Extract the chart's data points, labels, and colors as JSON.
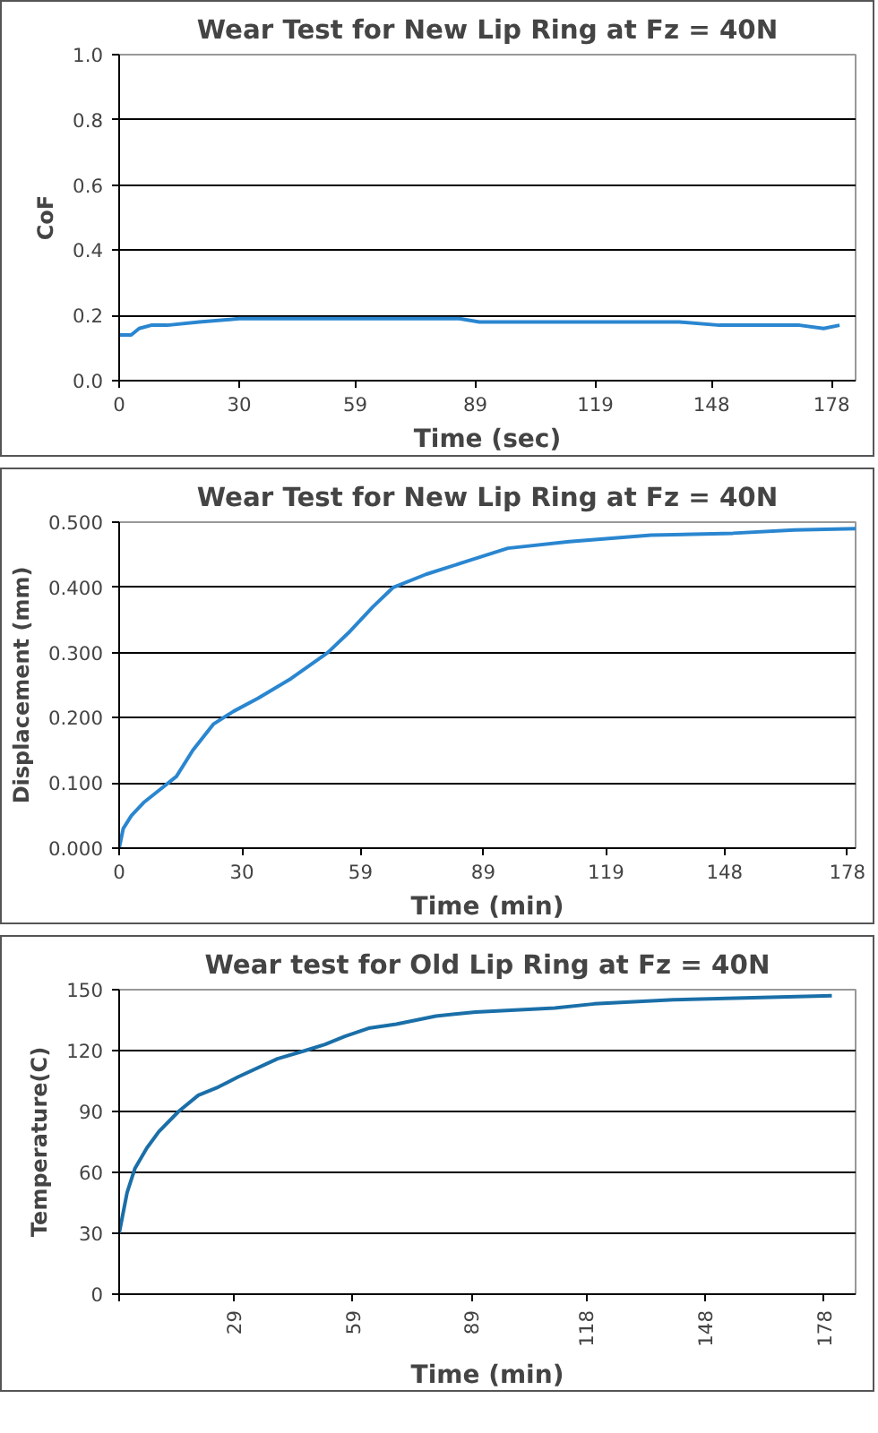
{
  "chart_data": [
    {
      "type": "line",
      "title": "Wear Test for New Lip Ring at Fz = 40N",
      "xlabel": "Time (sec)",
      "ylabel": "CoF",
      "grid": "y",
      "x": [
        0,
        3,
        5,
        8,
        12,
        20,
        30,
        40,
        50,
        60,
        70,
        80,
        85,
        90,
        100,
        110,
        120,
        130,
        140,
        150,
        160,
        170,
        176,
        180
      ],
      "series": [
        {
          "color": "#2a86d0",
          "values": [
            0.14,
            0.14,
            0.16,
            0.17,
            0.17,
            0.18,
            0.19,
            0.19,
            0.19,
            0.19,
            0.19,
            0.19,
            0.19,
            0.18,
            0.18,
            0.18,
            0.18,
            0.18,
            0.18,
            0.17,
            0.17,
            0.17,
            0.16,
            0.17
          ]
        }
      ],
      "xlim": [
        0,
        184
      ],
      "xticks": [
        0,
        30,
        59,
        89,
        119,
        148,
        178
      ],
      "ylim": [
        0,
        1
      ],
      "yticks": [
        {
          "value": 0,
          "label": "0.0"
        },
        0.2,
        0.4,
        0.6,
        0.8,
        {
          "value": 1,
          "label": "1.0"
        }
      ]
    },
    {
      "type": "line",
      "title": "Wear Test for New Lip Ring at Fz = 40N",
      "xlabel": "Time (min)",
      "ylabel": "Displacement (mm)",
      "grid": "y",
      "x": [
        0,
        1,
        3,
        6,
        10,
        14,
        18,
        23,
        28,
        34,
        42,
        51,
        56,
        62,
        67,
        75,
        85,
        95,
        110,
        130,
        150,
        165,
        180
      ],
      "series": [
        {
          "color": "#2a86d0",
          "values": [
            0,
            0.03,
            0.05,
            0.07,
            0.09,
            0.11,
            0.15,
            0.19,
            0.21,
            0.23,
            0.26,
            0.3,
            0.33,
            0.37,
            0.4,
            0.42,
            0.44,
            0.46,
            0.47,
            0.48,
            0.483,
            0.488,
            0.49
          ]
        }
      ],
      "xlim": [
        0,
        180
      ],
      "xticks": [
        0,
        30,
        59,
        89,
        119,
        148,
        178
      ],
      "ylim": [
        0,
        0.5
      ],
      "yticks": [
        {
          "value": 0,
          "label": "0.000"
        },
        {
          "value": 0.1,
          "label": "0.100"
        },
        {
          "value": 0.2,
          "label": "0.200"
        },
        {
          "value": 0.3,
          "label": "0.300"
        },
        {
          "value": 0.4,
          "label": "0.400"
        },
        {
          "value": 0.5,
          "label": "0.500"
        }
      ]
    },
    {
      "type": "line",
      "title": "Wear test for Old Lip Ring at Fz = 40N",
      "xlabel": "Time (min)",
      "ylabel": "Temperature(C)",
      "grid": "y",
      "x": [
        0,
        2,
        4,
        7,
        10,
        15,
        20,
        25,
        30,
        40,
        47,
        52,
        57,
        63,
        70,
        80,
        90,
        110,
        120,
        140,
        160,
        180
      ],
      "series": [
        {
          "color": "#1a6fa8",
          "values": [
            30,
            50,
            62,
            72,
            80,
            90,
            98,
            102,
            107,
            116,
            120,
            123,
            127,
            131,
            133,
            137,
            139,
            141,
            143,
            145,
            146,
            147
          ]
        }
      ],
      "xlim": [
        0,
        186
      ],
      "xticks": [
        {
          "value": 0,
          "label": null
        },
        29,
        59,
        89,
        118,
        148,
        178
      ],
      "ylim": [
        0,
        150
      ],
      "yticks": [
        0,
        30,
        60,
        90,
        120,
        150
      ]
    }
  ]
}
